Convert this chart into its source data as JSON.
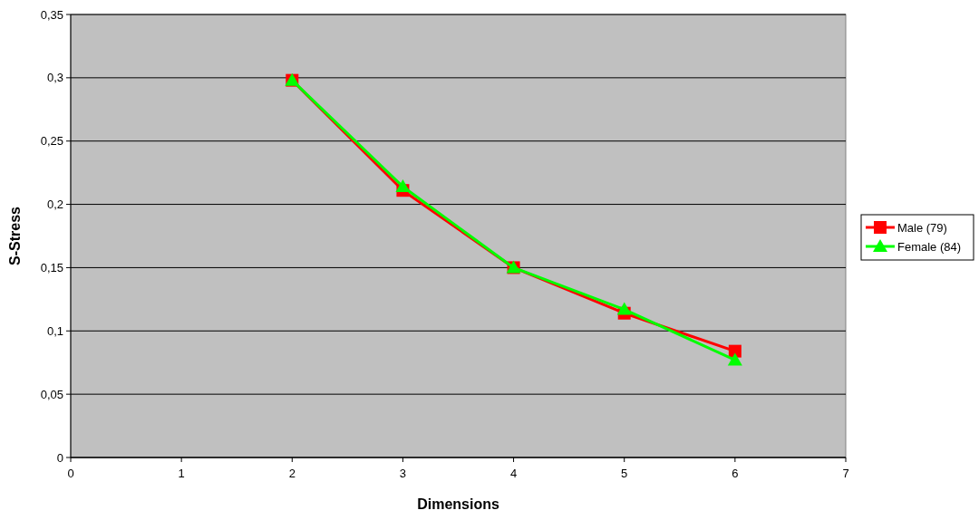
{
  "chart_data": {
    "type": "line",
    "xlabel": "Dimensions",
    "ylabel": "S-Stress",
    "x": [
      2,
      3,
      4,
      5,
      6
    ],
    "series": [
      {
        "name": "Male (79)",
        "color": "#ff0000",
        "marker": "square",
        "values": [
          0.298,
          0.211,
          0.15,
          0.114,
          0.084
        ]
      },
      {
        "name": "Female (84)",
        "color": "#00ff00",
        "marker": "triangle",
        "values": [
          0.298,
          0.214,
          0.15,
          0.117,
          0.077
        ]
      }
    ],
    "xlim": [
      0,
      7
    ],
    "xticks": [
      0,
      1,
      2,
      3,
      4,
      5,
      6,
      7
    ],
    "ylim": [
      0,
      0.35
    ],
    "yticks": [
      {
        "value": 0,
        "label": "0"
      },
      {
        "value": 0.05,
        "label": "0,05"
      },
      {
        "value": 0.1,
        "label": "0,1"
      },
      {
        "value": 0.15,
        "label": "0,15"
      },
      {
        "value": 0.2,
        "label": "0,2"
      },
      {
        "value": 0.25,
        "label": "0,25"
      },
      {
        "value": 0.3,
        "label": "0,3"
      },
      {
        "value": 0.35,
        "label": "0,35"
      }
    ],
    "grid": "y",
    "legend": "right"
  }
}
